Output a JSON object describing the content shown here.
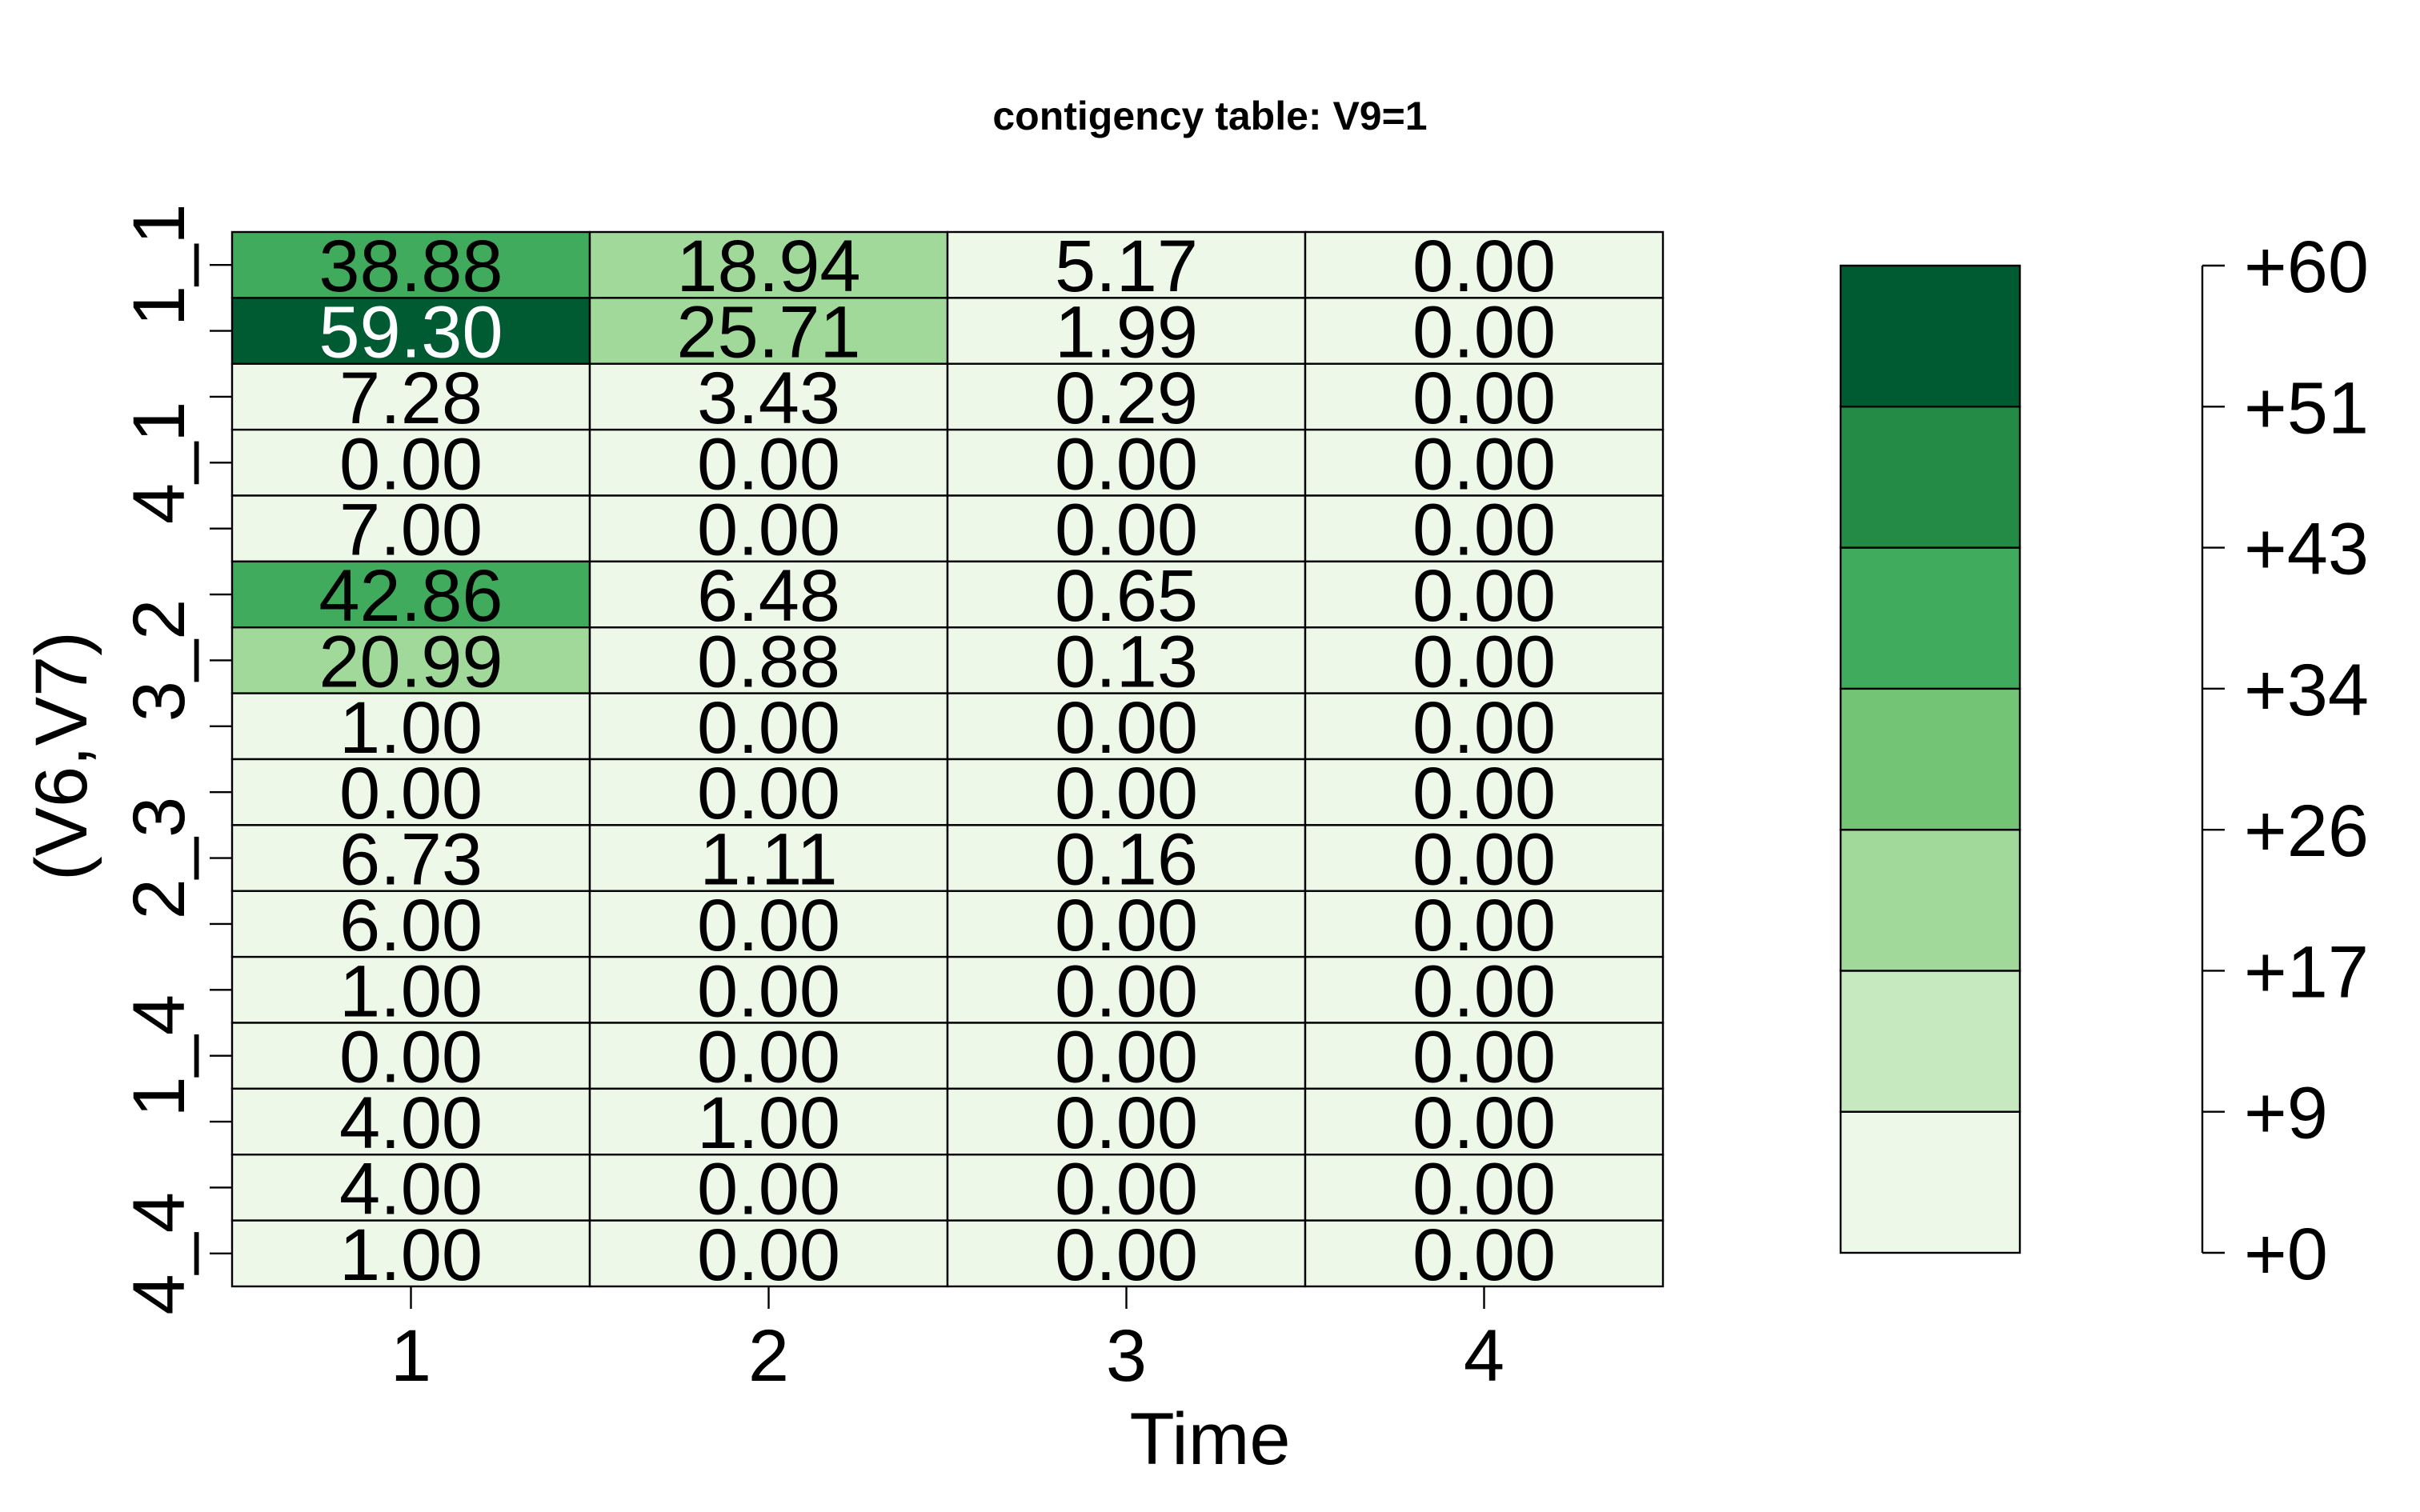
{
  "chart_data": {
    "type": "heatmap",
    "title": "contigency table: V9=1",
    "xlabel": "Time",
    "ylabel": "(V6,V7)",
    "x_categories": [
      "1",
      "2",
      "3",
      "4"
    ],
    "y_tick_labels": [
      "1_1",
      "4_1",
      "3_2",
      "2_3",
      "1_4",
      "4_4"
    ],
    "row_count": 16,
    "values": [
      [
        38.88,
        18.94,
        5.17,
        0.0
      ],
      [
        59.3,
        25.71,
        1.99,
        0.0
      ],
      [
        7.28,
        3.43,
        0.29,
        0.0
      ],
      [
        0.0,
        0.0,
        0.0,
        0.0
      ],
      [
        7.0,
        0.0,
        0.0,
        0.0
      ],
      [
        42.86,
        6.48,
        0.65,
        0.0
      ],
      [
        20.99,
        0.88,
        0.13,
        0.0
      ],
      [
        1.0,
        0.0,
        0.0,
        0.0
      ],
      [
        0.0,
        0.0,
        0.0,
        0.0
      ],
      [
        6.73,
        1.11,
        0.16,
        0.0
      ],
      [
        6.0,
        0.0,
        0.0,
        0.0
      ],
      [
        1.0,
        0.0,
        0.0,
        0.0
      ],
      [
        0.0,
        0.0,
        0.0,
        0.0
      ],
      [
        4.0,
        1.0,
        0.0,
        0.0
      ],
      [
        4.0,
        0.0,
        0.0,
        0.0
      ],
      [
        1.0,
        0.0,
        0.0,
        0.0
      ]
    ],
    "labels": [
      [
        "38.88",
        "18.94",
        "5.17",
        "0.00"
      ],
      [
        "59.30",
        "25.71",
        "1.99",
        "0.00"
      ],
      [
        "7.28",
        "3.43",
        "0.29",
        "0.00"
      ],
      [
        "0.00",
        "0.00",
        "0.00",
        "0.00"
      ],
      [
        "7.00",
        "0.00",
        "0.00",
        "0.00"
      ],
      [
        "42.86",
        "6.48",
        "0.65",
        "0.00"
      ],
      [
        "20.99",
        "0.88",
        "0.13",
        "0.00"
      ],
      [
        "1.00",
        "0.00",
        "0.00",
        "0.00"
      ],
      [
        "0.00",
        "0.00",
        "0.00",
        "0.00"
      ],
      [
        "6.73",
        "1.11",
        "0.16",
        "0.00"
      ],
      [
        "6.00",
        "0.00",
        "0.00",
        "0.00"
      ],
      [
        "1.00",
        "0.00",
        "0.00",
        "0.00"
      ],
      [
        "0.00",
        "0.00",
        "0.00",
        "0.00"
      ],
      [
        "4.00",
        "1.00",
        "0.00",
        "0.00"
      ],
      [
        "4.00",
        "0.00",
        "0.00",
        "0.00"
      ],
      [
        "1.00",
        "0.00",
        "0.00",
        "0.00"
      ]
    ],
    "color_scale": {
      "breaks": [
        0,
        8.57,
        17.14,
        25.71,
        34.29,
        42.86,
        51.43,
        60
      ],
      "colors": [
        "#edf8e9",
        "#c7e9c0",
        "#a1d99b",
        "#74c476",
        "#41ab5d",
        "#238b45",
        "#005a32"
      ],
      "tick_labels": [
        "+0",
        "+9",
        "+17",
        "+26",
        "+34",
        "+43",
        "+51",
        "+60"
      ]
    },
    "grid": false
  }
}
